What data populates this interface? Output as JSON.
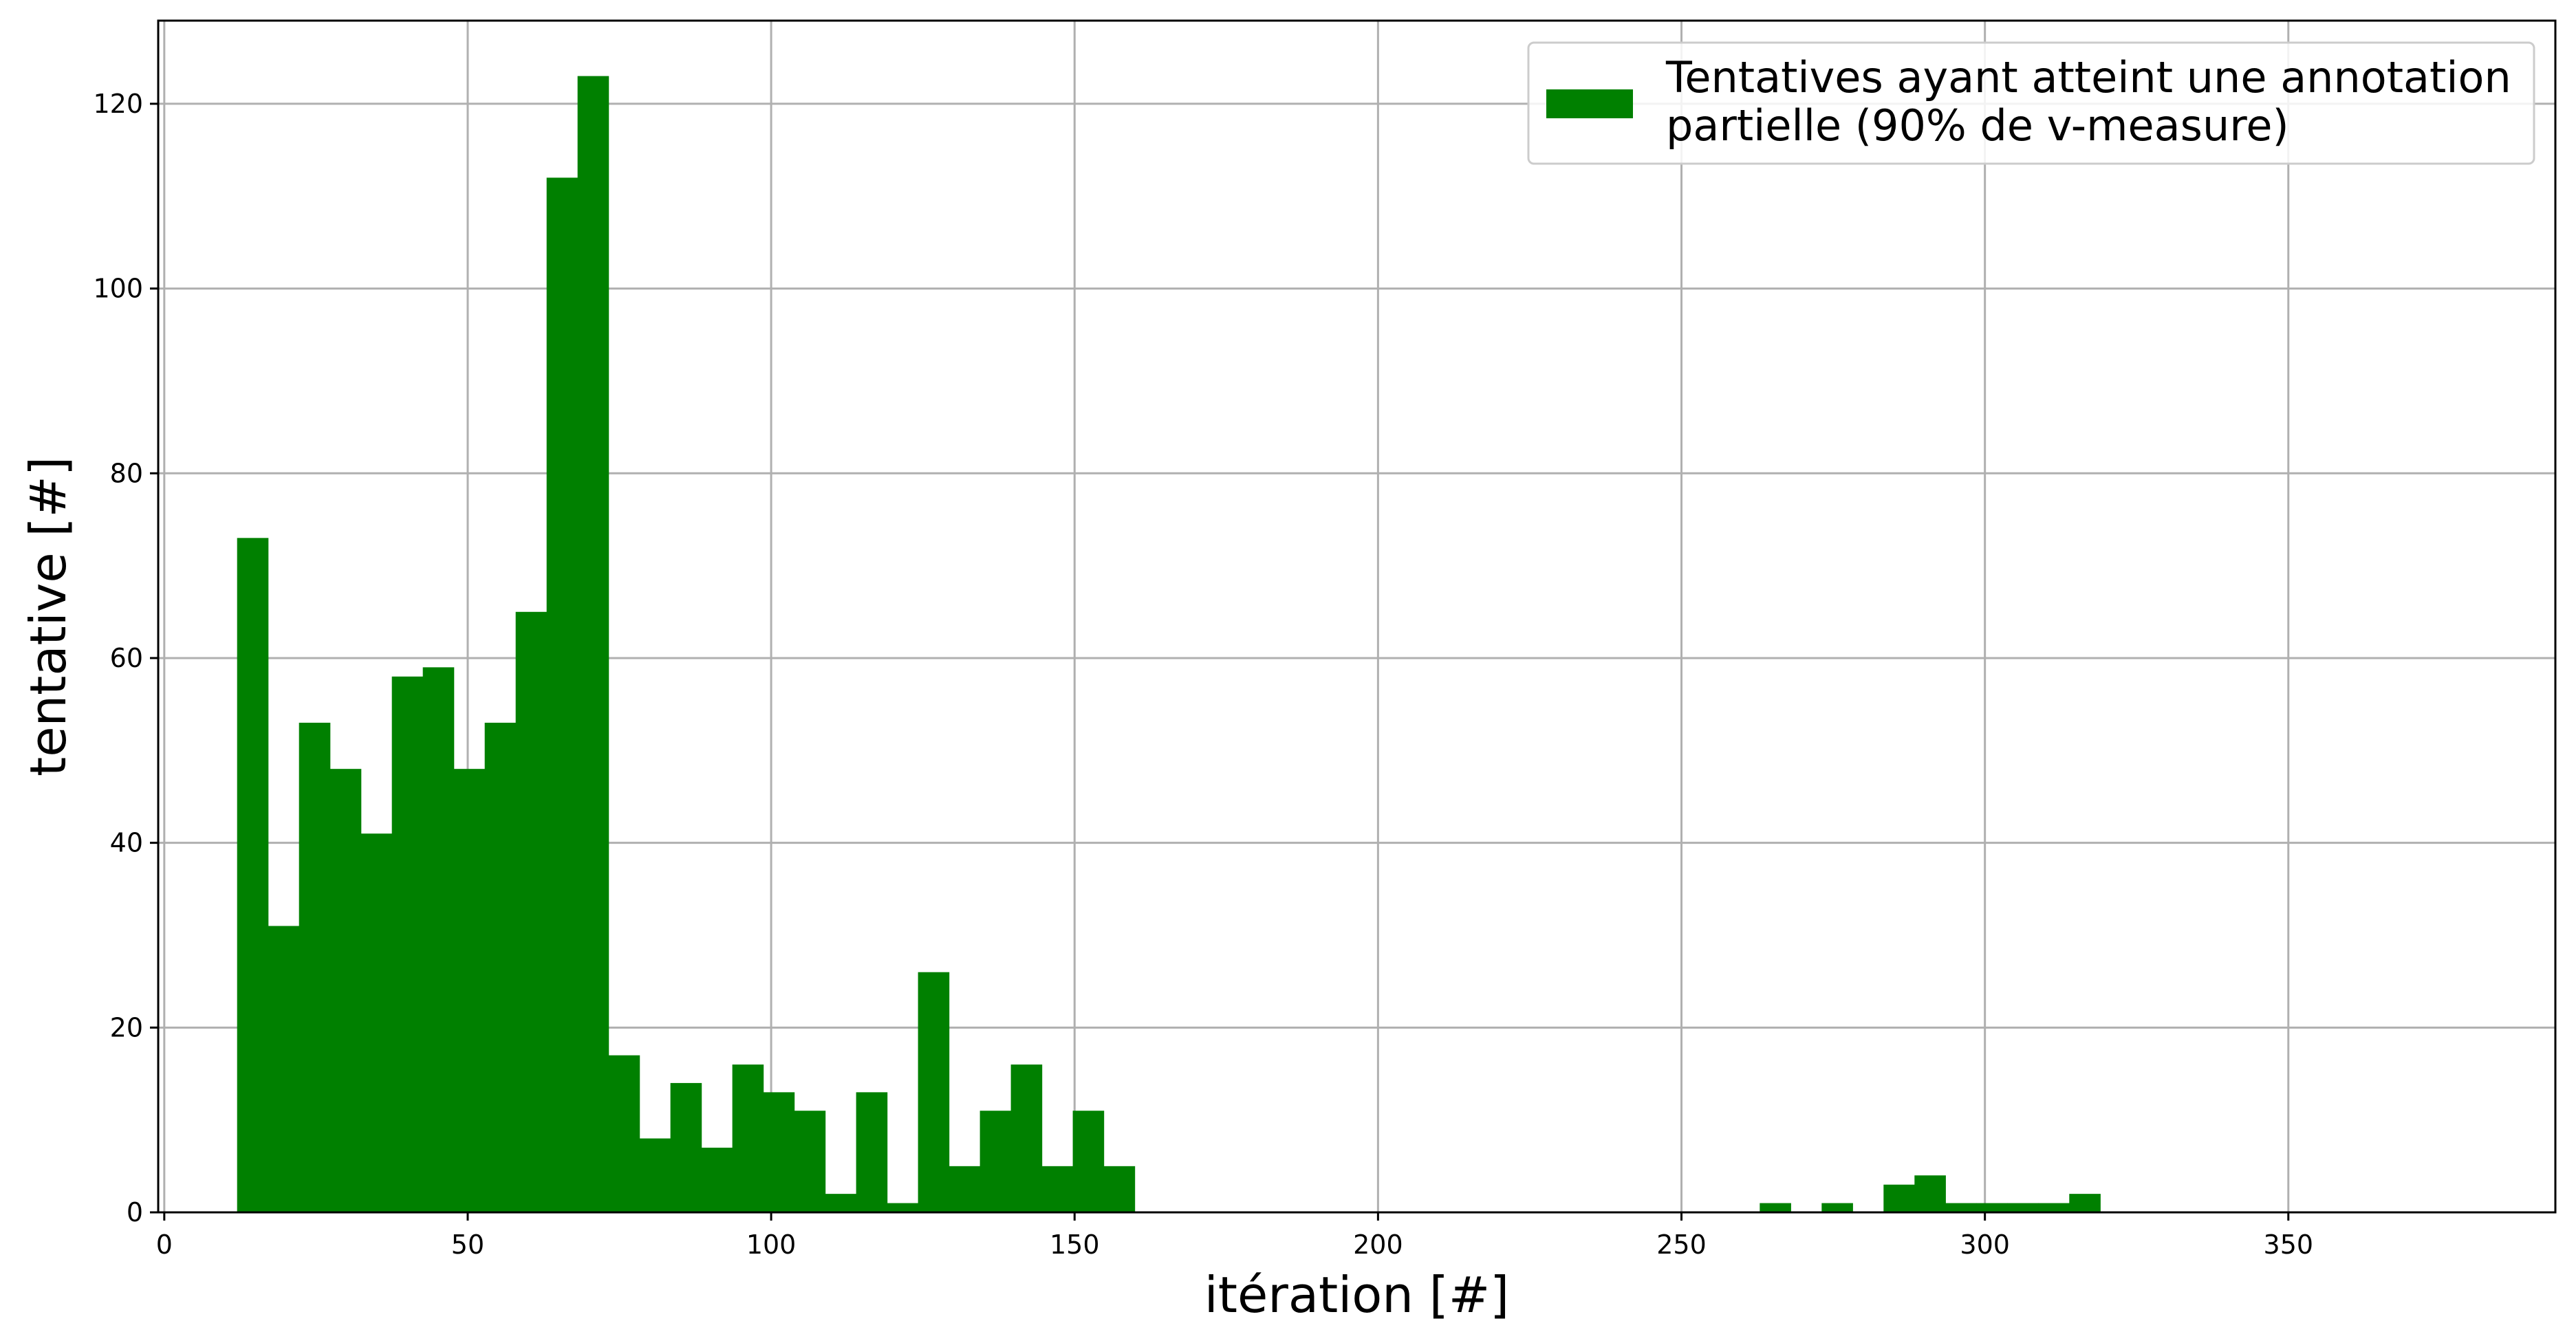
{
  "chart_data": {
    "type": "bar",
    "xlabel": "itération [#]",
    "ylabel": "tentative [#]",
    "xlim": [
      -1,
      394
    ],
    "ylim": [
      0,
      129
    ],
    "xticks": [
      0,
      50,
      100,
      150,
      200,
      250,
      300,
      350
    ],
    "yticks": [
      0,
      20,
      40,
      60,
      80,
      100,
      120
    ],
    "grid": true,
    "legend_position": "top-right",
    "bar_color": "#008000",
    "bin_width": 5.1,
    "series": [
      {
        "name": "Tentatives ayant atteint une annotation partielle (90% de v-measure)",
        "legend_lines": [
          "Tentatives ayant atteint une annotation",
          "partielle (90% de v-measure)"
        ],
        "bins": [
          {
            "x": 12.0,
            "y": 73
          },
          {
            "x": 17.1,
            "y": 31
          },
          {
            "x": 22.2,
            "y": 53
          },
          {
            "x": 27.3,
            "y": 48
          },
          {
            "x": 32.4,
            "y": 41
          },
          {
            "x": 37.5,
            "y": 58
          },
          {
            "x": 42.6,
            "y": 59
          },
          {
            "x": 47.7,
            "y": 48
          },
          {
            "x": 52.8,
            "y": 53
          },
          {
            "x": 57.9,
            "y": 65
          },
          {
            "x": 63.0,
            "y": 112
          },
          {
            "x": 68.1,
            "y": 123
          },
          {
            "x": 73.2,
            "y": 17
          },
          {
            "x": 78.3,
            "y": 8
          },
          {
            "x": 83.4,
            "y": 14
          },
          {
            "x": 88.5,
            "y": 7
          },
          {
            "x": 93.6,
            "y": 16
          },
          {
            "x": 98.7,
            "y": 13
          },
          {
            "x": 103.8,
            "y": 11
          },
          {
            "x": 108.9,
            "y": 2
          },
          {
            "x": 114.0,
            "y": 13
          },
          {
            "x": 119.1,
            "y": 1
          },
          {
            "x": 124.2,
            "y": 26
          },
          {
            "x": 129.3,
            "y": 5
          },
          {
            "x": 134.4,
            "y": 11
          },
          {
            "x": 139.5,
            "y": 16
          },
          {
            "x": 144.6,
            "y": 5
          },
          {
            "x": 149.7,
            "y": 11
          },
          {
            "x": 154.8,
            "y": 5
          },
          {
            "x": 262.9,
            "y": 1
          },
          {
            "x": 273.1,
            "y": 1
          },
          {
            "x": 283.3,
            "y": 3
          },
          {
            "x": 288.4,
            "y": 4
          },
          {
            "x": 293.5,
            "y": 1
          },
          {
            "x": 298.6,
            "y": 1
          },
          {
            "x": 303.7,
            "y": 1
          },
          {
            "x": 308.8,
            "y": 1
          },
          {
            "x": 313.9,
            "y": 2
          }
        ]
      }
    ]
  }
}
